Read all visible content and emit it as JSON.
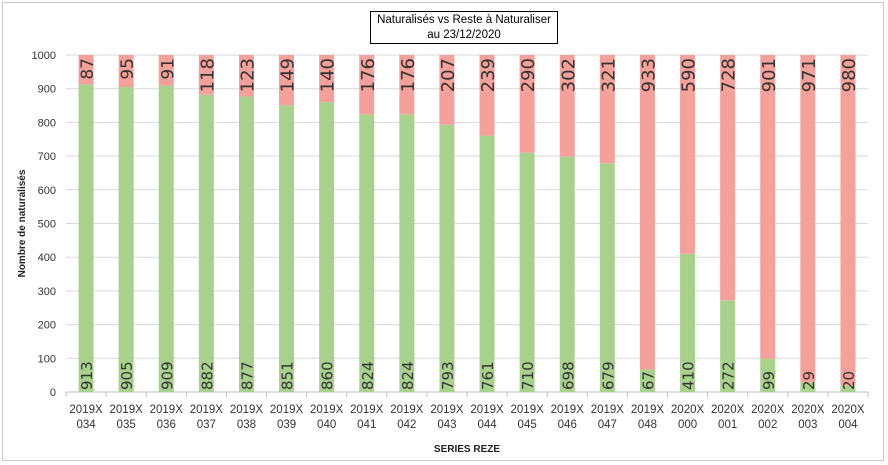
{
  "title": {
    "line1": "Naturalisés vs Reste à Naturaliser",
    "line2": "au 23/12/2020"
  },
  "colors": {
    "naturalises": "#a9d18e",
    "reste": "#f4a09b",
    "grid": "#d9d9d9",
    "axis": "#bfbfbf"
  },
  "chart_data": {
    "type": "bar",
    "stacked": true,
    "title": "Naturalisés vs Reste à Naturaliser au 23/12/2020",
    "xlabel": "SERIES REZE",
    "ylabel": "Nombre de naturalisés",
    "ylim": [
      0,
      1000
    ],
    "yticks": [
      0,
      100,
      200,
      300,
      400,
      500,
      600,
      700,
      800,
      900,
      1000
    ],
    "grid": true,
    "legend": "none",
    "categories": [
      [
        "2019X",
        "034"
      ],
      [
        "2019X",
        "035"
      ],
      [
        "2019X",
        "036"
      ],
      [
        "2019X",
        "037"
      ],
      [
        "2019X",
        "038"
      ],
      [
        "2019X",
        "039"
      ],
      [
        "2019X",
        "040"
      ],
      [
        "2019X",
        "041"
      ],
      [
        "2019X",
        "042"
      ],
      [
        "2019X",
        "043"
      ],
      [
        "2019X",
        "044"
      ],
      [
        "2019X",
        "045"
      ],
      [
        "2019X",
        "046"
      ],
      [
        "2019X",
        "047"
      ],
      [
        "2019X",
        "048"
      ],
      [
        "2020X",
        "000"
      ],
      [
        "2020X",
        "001"
      ],
      [
        "2020X",
        "002"
      ],
      [
        "2020X",
        "003"
      ],
      [
        "2020X",
        "004"
      ]
    ],
    "series": [
      {
        "key": "naturalises",
        "values": [
          913,
          905,
          909,
          882,
          877,
          851,
          860,
          824,
          824,
          793,
          761,
          710,
          698,
          679,
          67,
          410,
          272,
          99,
          29,
          20
        ]
      },
      {
        "key": "reste",
        "values": [
          87,
          95,
          91,
          118,
          123,
          149,
          140,
          176,
          176,
          207,
          239,
          290,
          302,
          321,
          933,
          590,
          728,
          901,
          971,
          980
        ]
      }
    ]
  }
}
